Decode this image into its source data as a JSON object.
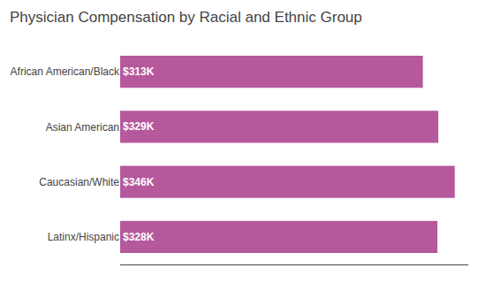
{
  "chart_data": {
    "type": "bar",
    "orientation": "horizontal",
    "title": "Physician Compensation by Racial and Ethnic Group",
    "categories": [
      "African American/Black",
      "Asian American",
      "Caucasian/White",
      "Latinx/Hispanic"
    ],
    "values": [
      313,
      329,
      346,
      328
    ],
    "value_labels": [
      "$313K",
      "$329K",
      "$346K",
      "$328K"
    ],
    "data_labels": true,
    "color": "#b5589c",
    "xlim": [
      0,
      360
    ],
    "xticks": [],
    "tick_labels": "y",
    "grid": false
  }
}
